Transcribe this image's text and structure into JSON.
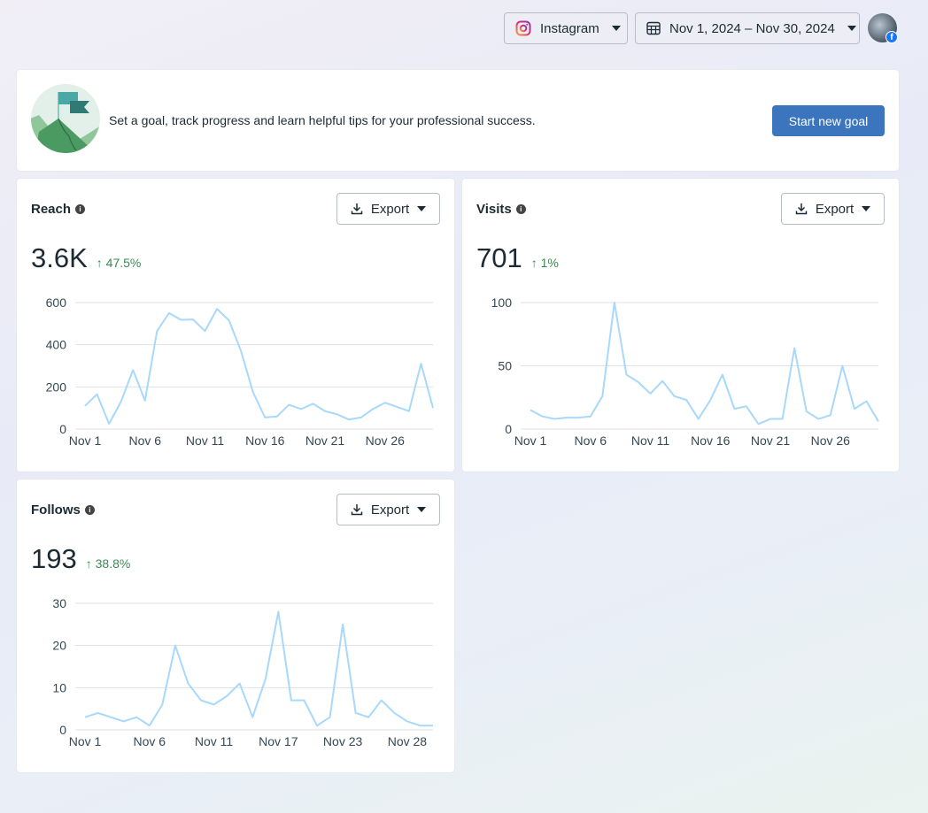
{
  "header": {
    "platform": "Instagram",
    "date_range": "Nov 1, 2024 – Nov 30, 2024",
    "avatar_badge": "facebook-icon"
  },
  "banner": {
    "text": "Set a goal, track progress and learn helpful tips for your professional success.",
    "button": "Start new goal"
  },
  "colors": {
    "accent": "#3b75bd",
    "line": "#a8d8fb",
    "positive": "#3a8a55"
  },
  "cards": {
    "reach": {
      "title": "Reach",
      "value": "3.6K",
      "delta": "↑ 47.5%",
      "export": "Export"
    },
    "visits": {
      "title": "Visits",
      "value": "701",
      "delta": "↑ 1%",
      "export": "Export"
    },
    "follows": {
      "title": "Follows",
      "value": "193",
      "delta": "↑ 38.8%",
      "export": "Export"
    }
  },
  "chart_data": [
    {
      "type": "line",
      "name": "reach",
      "ylim": [
        0,
        600
      ],
      "yticks": [
        0,
        200,
        400,
        600
      ],
      "grid": true,
      "xticks": [
        {
          "i": 0,
          "label": "Nov 1"
        },
        {
          "i": 5,
          "label": "Nov 6"
        },
        {
          "i": 10,
          "label": "Nov 11"
        },
        {
          "i": 15,
          "label": "Nov 16"
        },
        {
          "i": 20,
          "label": "Nov 21"
        },
        {
          "i": 25,
          "label": "Nov 26"
        }
      ],
      "values": [
        110,
        165,
        25,
        130,
        280,
        135,
        465,
        550,
        518,
        520,
        465,
        570,
        515,
        370,
        175,
        55,
        60,
        115,
        95,
        120,
        85,
        70,
        45,
        55,
        95,
        125,
        105,
        85,
        310,
        100
      ]
    },
    {
      "type": "line",
      "name": "visits",
      "ylim": [
        0,
        100
      ],
      "yticks": [
        0,
        50,
        100
      ],
      "grid": true,
      "xticks": [
        {
          "i": 0,
          "label": "Nov 1"
        },
        {
          "i": 5,
          "label": "Nov 6"
        },
        {
          "i": 10,
          "label": "Nov 11"
        },
        {
          "i": 15,
          "label": "Nov 16"
        },
        {
          "i": 20,
          "label": "Nov 21"
        },
        {
          "i": 25,
          "label": "Nov 26"
        }
      ],
      "values": [
        15,
        10,
        8,
        9,
        9,
        10,
        26,
        100,
        43,
        37,
        28,
        38,
        26,
        23,
        8,
        23,
        43,
        16,
        18,
        4,
        8,
        8,
        64,
        14,
        8,
        11,
        50,
        16,
        22,
        6
      ]
    },
    {
      "type": "line",
      "name": "follows",
      "ylim": [
        0,
        30
      ],
      "yticks": [
        0,
        10,
        20,
        30
      ],
      "grid": true,
      "xticks": [
        {
          "i": 0,
          "label": "Nov 1"
        },
        {
          "i": 5,
          "label": "Nov 6"
        },
        {
          "i": 10,
          "label": "Nov 11"
        },
        {
          "i": 15,
          "label": "Nov 17"
        },
        {
          "i": 20,
          "label": "Nov 23"
        },
        {
          "i": 25,
          "label": "Nov 28"
        }
      ],
      "values": [
        3,
        4,
        3,
        2,
        3,
        1,
        6,
        20,
        11,
        7,
        6,
        8,
        11,
        3,
        12,
        28,
        7,
        7,
        1,
        3,
        25,
        4,
        3,
        7,
        4,
        2,
        1,
        1
      ]
    }
  ]
}
